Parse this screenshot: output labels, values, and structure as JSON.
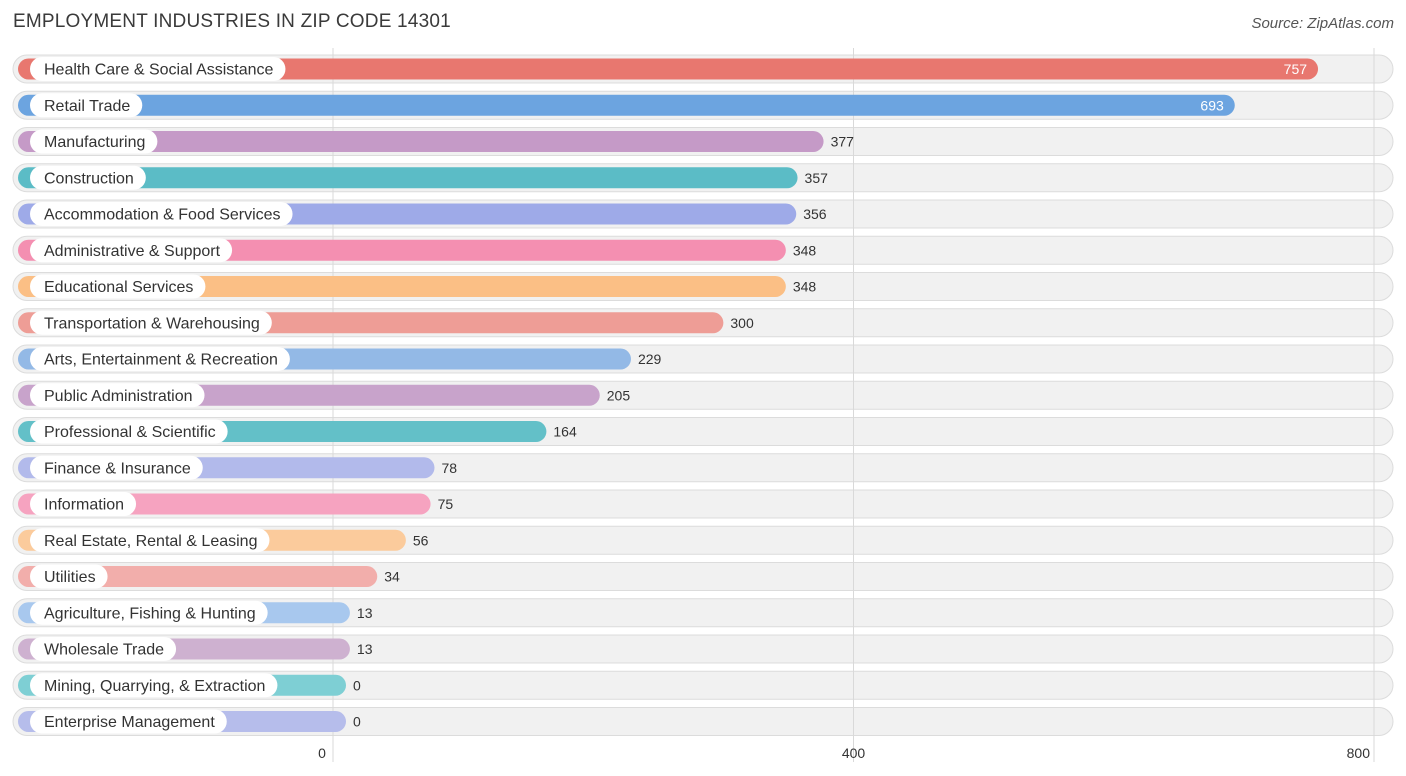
{
  "header": {
    "title": "EMPLOYMENT INDUSTRIES IN ZIP CODE 14301",
    "source": "Source: ZipAtlas.com"
  },
  "chart_data": {
    "type": "bar",
    "orientation": "horizontal",
    "title": "EMPLOYMENT INDUSTRIES IN ZIP CODE 14301",
    "xlabel": "",
    "ylabel": "",
    "xlim": [
      0,
      800
    ],
    "ticks": [
      0,
      400,
      800
    ],
    "grid": true,
    "categories": [
      "Health Care & Social Assistance",
      "Retail Trade",
      "Manufacturing",
      "Construction",
      "Accommodation & Food Services",
      "Administrative & Support",
      "Educational Services",
      "Transportation & Warehousing",
      "Arts, Entertainment & Recreation",
      "Public Administration",
      "Professional & Scientific",
      "Finance & Insurance",
      "Information",
      "Real Estate, Rental & Leasing",
      "Utilities",
      "Agriculture, Fishing & Hunting",
      "Wholesale Trade",
      "Mining, Quarrying, & Extraction",
      "Enterprise Management"
    ],
    "values": [
      757,
      693,
      377,
      357,
      356,
      348,
      348,
      300,
      229,
      205,
      164,
      78,
      75,
      56,
      34,
      13,
      13,
      0,
      0
    ],
    "colors": [
      "#e8776f",
      "#6ca4e0",
      "#c59ac7",
      "#5bbcc6",
      "#9eaae8",
      "#f48fb1",
      "#fbbf85",
      "#ee9d96",
      "#93b9e6",
      "#c8a3cb",
      "#63c0c8",
      "#b2baeb",
      "#f6a3c0",
      "#fbcb9c",
      "#f2aeab",
      "#a8c8ee",
      "#ceb1d0",
      "#7ecfd4",
      "#b6bdeb"
    ]
  }
}
